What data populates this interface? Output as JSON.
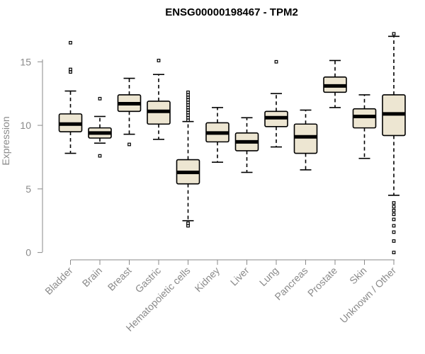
{
  "chart_data": {
    "type": "boxplot",
    "title": "ENSG00000198467 - TPM2",
    "xlabel": "",
    "ylabel": "Expression",
    "ylim": [
      -0.3,
      18.3
    ],
    "yticks": [
      0,
      5,
      10,
      15
    ],
    "colors": {
      "box_fill": "#ede6d2",
      "box_stroke": "#000000",
      "axis": "#8a8a8a",
      "title": "#000000"
    },
    "categories": [
      "Bladder",
      "Brain",
      "Breast",
      "Gastric",
      "Hematopoietic cells",
      "Kidney",
      "Liver",
      "Lung",
      "Pancreas",
      "Prostate",
      "Skin",
      "Unknown / Other"
    ],
    "boxes": [
      {
        "name": "Bladder",
        "whislo": 7.8,
        "q1": 9.5,
        "med": 10.1,
        "q3": 10.9,
        "whishi": 12.7,
        "outliers": [
          16.5,
          14.4,
          14.2
        ]
      },
      {
        "name": "Brain",
        "whislo": 8.6,
        "q1": 9.0,
        "med": 9.4,
        "q3": 9.8,
        "whishi": 10.7,
        "outliers": [
          12.1,
          7.6
        ]
      },
      {
        "name": "Breast",
        "whislo": 9.3,
        "q1": 11.1,
        "med": 11.7,
        "q3": 12.4,
        "whishi": 13.7,
        "outliers": [
          8.5
        ]
      },
      {
        "name": "Gastric",
        "whislo": 8.9,
        "q1": 10.1,
        "med": 11.1,
        "q3": 11.9,
        "whishi": 14.0,
        "outliers": [
          15.1
        ]
      },
      {
        "name": "Hematopoietic cells",
        "whislo": 2.5,
        "q1": 5.4,
        "med": 6.3,
        "q3": 7.3,
        "whishi": 10.3,
        "outliers": [
          12.6,
          12.4,
          12.2,
          12.0,
          11.8,
          11.6,
          11.4,
          11.2,
          11.0,
          10.8,
          10.6,
          10.4,
          2.3,
          2.1
        ]
      },
      {
        "name": "Kidney",
        "whislo": 7.1,
        "q1": 8.7,
        "med": 9.4,
        "q3": 10.2,
        "whishi": 11.4,
        "outliers": []
      },
      {
        "name": "Liver",
        "whislo": 6.3,
        "q1": 8.0,
        "med": 8.7,
        "q3": 9.4,
        "whishi": 10.6,
        "outliers": []
      },
      {
        "name": "Lung",
        "whislo": 8.3,
        "q1": 9.9,
        "med": 10.6,
        "q3": 11.1,
        "whishi": 12.5,
        "outliers": [
          15.0
        ]
      },
      {
        "name": "Pancreas",
        "whislo": 6.5,
        "q1": 7.8,
        "med": 9.1,
        "q3": 10.1,
        "whishi": 11.2,
        "outliers": []
      },
      {
        "name": "Prostate",
        "whislo": 11.4,
        "q1": 12.6,
        "med": 13.1,
        "q3": 13.8,
        "whishi": 15.1,
        "outliers": []
      },
      {
        "name": "Skin",
        "whislo": 7.4,
        "q1": 9.8,
        "med": 10.7,
        "q3": 11.3,
        "whishi": 12.4,
        "outliers": []
      },
      {
        "name": "Unknown / Other",
        "whislo": 4.5,
        "q1": 9.2,
        "med": 10.9,
        "q3": 12.4,
        "whishi": 17.0,
        "outliers": [
          17.2,
          3.9,
          3.6,
          3.3,
          3.0,
          2.6,
          2.1,
          1.6,
          0.9,
          0.0
        ]
      }
    ]
  }
}
